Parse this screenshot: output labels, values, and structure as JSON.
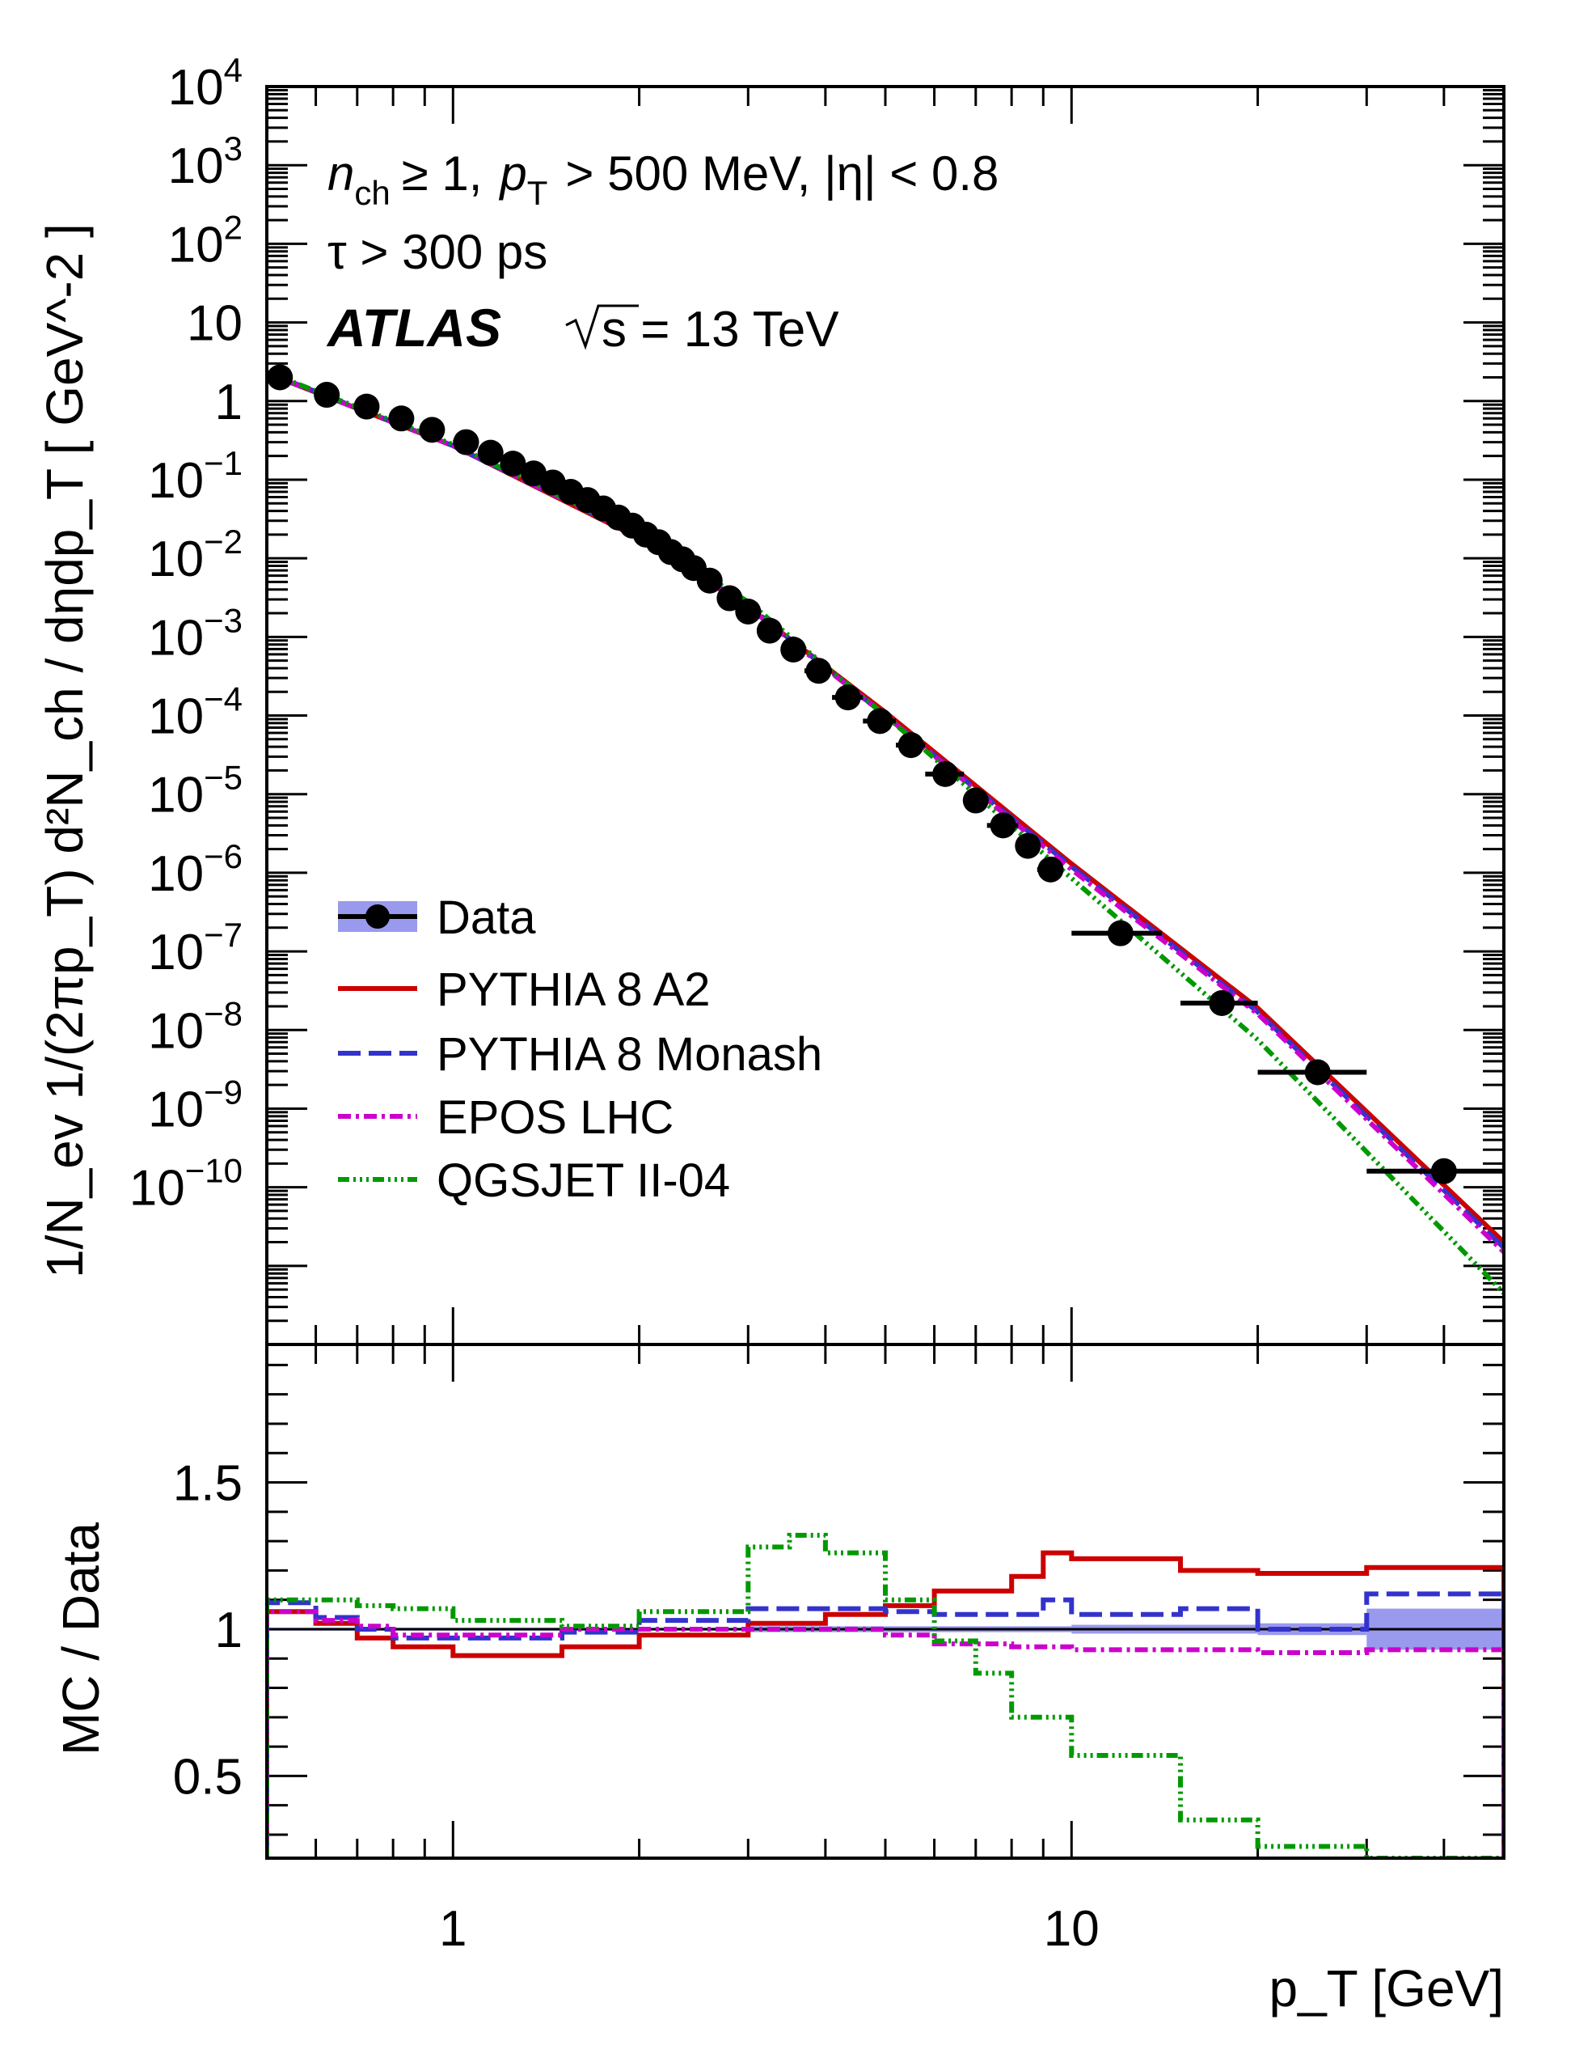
{
  "chart_data": [
    {
      "type": "scatter",
      "panel": "main",
      "title": "",
      "xlabel": "p_T [GeV]",
      "ylabel": "1/N_ev 1/(2πp_T) d²N_ch / dηdp_T [ GeV^-2 ]",
      "xscale": "log",
      "yscale": "log",
      "xlim": [
        0.5,
        50
      ],
      "ylim": [
        1e-12,
        10000
      ],
      "x_tick_labels": [
        "1",
        "10"
      ],
      "y_tick_labels": [
        "10^4",
        "10^3",
        "10^2",
        "10",
        "1",
        "10^-1",
        "10^-2",
        "10^-3",
        "10^-4",
        "10^-5",
        "10^-6",
        "10^-7",
        "10^-8",
        "10^-9",
        "10^-10"
      ],
      "annotations": {
        "cuts_nch": "n",
        "cuts_nch_sub": "ch",
        "cuts_rest_1": "≥ 1,",
        "cuts_pt": "p",
        "cuts_pt_sub": "T",
        "cuts_rest_2": "> 500 MeV, |η| < 0.8",
        "tau": "τ > 300 ps",
        "experiment": "ATLAS",
        "energy": "s = 13 TeV"
      },
      "legend": {
        "position": "lower-left",
        "entries": [
          "Data",
          "PYTHIA 8 A2",
          "PYTHIA 8 Monash",
          "EPOS LHC",
          "QGSJET II-04"
        ]
      },
      "series": [
        {
          "name": "Data",
          "color": "#000000",
          "x": [
            0.525,
            0.625,
            0.725,
            0.825,
            0.925,
            1.05,
            1.15,
            1.25,
            1.35,
            1.45,
            1.55,
            1.65,
            1.75,
            1.85,
            1.95,
            2.05,
            2.15,
            2.25,
            2.35,
            2.45,
            2.6,
            2.8,
            3.0,
            3.25,
            3.55,
            3.9,
            4.35,
            4.9,
            5.5,
            6.25,
            7.0,
            7.75,
            8.5,
            9.25,
            12.0,
            17.5,
            25.0,
            40.0
          ],
          "y": [
            2.0,
            1.2,
            0.85,
            0.6,
            0.43,
            0.3,
            0.22,
            0.16,
            0.12,
            0.092,
            0.07,
            0.055,
            0.043,
            0.033,
            0.026,
            0.02,
            0.016,
            0.012,
            0.0097,
            0.0075,
            0.0052,
            0.0031,
            0.0021,
            0.0012,
            0.00069,
            0.00037,
            0.00017,
            8.5e-05,
            4.2e-05,
            1.8e-05,
            8.3e-06,
            4e-06,
            2.2e-06,
            1.1e-06,
            1.7e-07,
            2.2e-08,
            2.9e-09,
            1.6e-10
          ],
          "x_err": [
            0.025,
            0.025,
            0.025,
            0.025,
            0.025,
            0.05,
            0.05,
            0.05,
            0.05,
            0.05,
            0.05,
            0.05,
            0.05,
            0.05,
            0.05,
            0.05,
            0.05,
            0.05,
            0.05,
            0.05,
            0.1,
            0.1,
            0.1,
            0.15,
            0.15,
            0.2,
            0.25,
            0.3,
            0.3,
            0.45,
            0.3,
            0.45,
            0.3,
            0.45,
            2.0,
            2.5,
            5.0,
            10.0
          ]
        },
        {
          "name": "PYTHIA 8 A2",
          "color": "#cc0000",
          "dash": "solid",
          "x": [
            0.5,
            1,
            2,
            3,
            5,
            10,
            20,
            50
          ],
          "y": [
            2.25,
            0.27,
            0.018,
            0.0024,
            0.00011,
            1.3e-06,
            1.9e-08,
            2e-11
          ]
        },
        {
          "name": "PYTHIA 8 Monash",
          "color": "#3333cc",
          "dash": "long-dash",
          "x": [
            0.5,
            1,
            2,
            3,
            5,
            10,
            20,
            50
          ],
          "y": [
            2.32,
            0.27,
            0.019,
            0.0025,
            0.0001,
            1.2e-06,
            1.7e-08,
            1.7e-11
          ]
        },
        {
          "name": "EPOS LHC",
          "color": "#cc00cc",
          "dash": "dash-dot",
          "x": [
            0.5,
            1,
            2,
            3,
            5,
            10,
            20,
            50
          ],
          "y": [
            2.25,
            0.27,
            0.019,
            0.0024,
            0.0001,
            1.1e-06,
            1.6e-08,
            1.5e-11
          ]
        },
        {
          "name": "QGSJET II-04",
          "color": "#009900",
          "dash": "dash-dot-dot",
          "x": [
            0.5,
            1,
            2,
            3,
            5,
            10,
            20,
            50
          ],
          "y": [
            2.35,
            0.28,
            0.02,
            0.0028,
            0.0001,
            8.5e-07,
            7.5e-09,
            4.5e-12
          ]
        }
      ]
    },
    {
      "type": "line",
      "panel": "ratio",
      "title": "",
      "xlabel": "p_T [GeV]",
      "ylabel": "MC / Data",
      "xscale": "log",
      "xlim": [
        0.5,
        50
      ],
      "ylim": [
        0.22,
        1.97
      ],
      "x_tick_labels": [
        "1",
        "10"
      ],
      "y_tick_labels": [
        "0.5",
        "1",
        "1.5"
      ],
      "reference_line": 1.0,
      "data_uncertainty_band": {
        "name": "Data",
        "color": "#9999ee",
        "x": [
          0.5,
          3,
          8,
          10,
          15,
          20,
          30,
          50
        ],
        "y_low": [
          0.995,
          0.99,
          0.99,
          0.985,
          0.985,
          0.98,
          0.93,
          0.93
        ],
        "y_high": [
          1.005,
          1.01,
          1.01,
          1.015,
          1.015,
          1.02,
          1.07,
          1.07
        ]
      },
      "series": [
        {
          "name": "PYTHIA 8 A2",
          "color": "#cc0000",
          "dash": "solid",
          "bin_edges": [
            0.5,
            0.6,
            0.7,
            0.8,
            1.0,
            1.5,
            2.0,
            3.0,
            4.0,
            5.0,
            6.0,
            8.0,
            9.0,
            10.0,
            15.0,
            20.0,
            30.0,
            50.0
          ],
          "values": [
            1.06,
            1.02,
            0.97,
            0.94,
            0.91,
            0.94,
            0.98,
            1.02,
            1.05,
            1.08,
            1.13,
            1.18,
            1.26,
            1.24,
            1.2,
            1.19,
            1.21
          ]
        },
        {
          "name": "PYTHIA 8 Monash",
          "color": "#3333cc",
          "dash": "long-dash",
          "bin_edges": [
            0.5,
            0.6,
            0.7,
            0.8,
            1.0,
            1.5,
            2.0,
            3.0,
            4.0,
            5.0,
            6.0,
            8.0,
            9.0,
            10.0,
            15.0,
            20.0,
            30.0,
            50.0
          ],
          "values": [
            1.09,
            1.04,
            1.0,
            0.97,
            0.97,
            0.99,
            1.03,
            1.07,
            1.07,
            1.06,
            1.05,
            1.05,
            1.1,
            1.05,
            1.07,
            1.0,
            1.12
          ]
        },
        {
          "name": "EPOS LHC",
          "color": "#cc00cc",
          "dash": "dash-dot",
          "bin_edges": [
            0.5,
            0.6,
            0.7,
            0.8,
            1.0,
            1.5,
            2.0,
            3.0,
            4.0,
            5.0,
            6.0,
            8.0,
            9.0,
            10.0,
            15.0,
            20.0,
            30.0,
            50.0
          ],
          "values": [
            1.06,
            1.03,
            1.01,
            0.98,
            0.98,
            1.0,
            1.0,
            1.0,
            1.0,
            0.98,
            0.95,
            0.94,
            0.94,
            0.93,
            0.93,
            0.92,
            0.93
          ]
        },
        {
          "name": "QGSJET II-04",
          "color": "#009900",
          "dash": "dash-dot-dot",
          "bin_edges": [
            0.5,
            0.6,
            0.7,
            0.8,
            1.0,
            1.5,
            2.0,
            3.0,
            3.5,
            4.0,
            5.0,
            6.0,
            7.0,
            8.0,
            10.0,
            15.0,
            20.0,
            30.0,
            50.0
          ],
          "values": [
            1.1,
            1.1,
            1.08,
            1.07,
            1.03,
            1.01,
            1.06,
            1.28,
            1.32,
            1.26,
            1.1,
            0.96,
            0.85,
            0.7,
            0.57,
            0.35,
            0.26,
            0.22
          ]
        }
      ]
    }
  ]
}
